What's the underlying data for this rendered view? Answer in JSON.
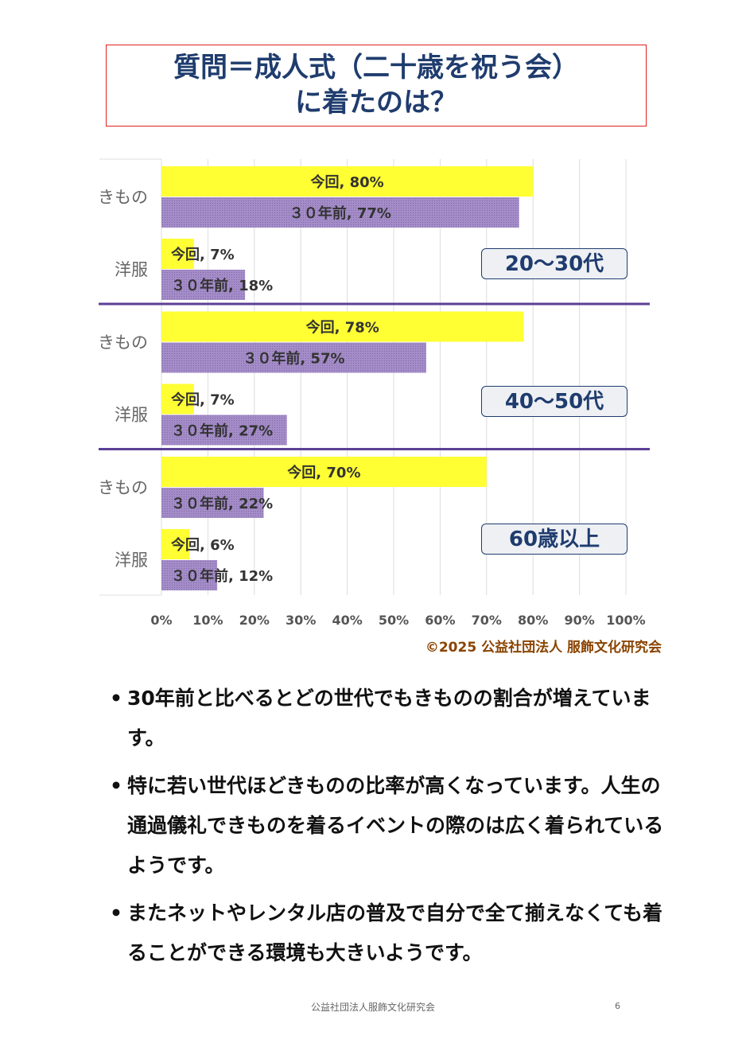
{
  "title": {
    "line1": "質問＝成人式（二十歳を祝う会）",
    "line2": "に着たのは？"
  },
  "chart_data": {
    "type": "bar",
    "orientation": "horizontal",
    "xlim": [
      0,
      100
    ],
    "x_ticks": [
      "0%",
      "10%",
      "20%",
      "30%",
      "40%",
      "50%",
      "60%",
      "70%",
      "80%",
      "90%",
      "100%"
    ],
    "grid": true,
    "colors": {
      "今回": "#ffff33",
      "３０年前": "#a48cc8"
    },
    "groups": [
      {
        "label": "20〜30代",
        "categories": [
          {
            "name": "きもの",
            "bars": [
              {
                "series": "今回",
                "value": 80,
                "label": "今回, 80%"
              },
              {
                "series": "３０年前",
                "value": 77,
                "label": "３０年前, 77%"
              }
            ]
          },
          {
            "name": "洋服",
            "bars": [
              {
                "series": "今回",
                "value": 7,
                "label": "今回, 7%"
              },
              {
                "series": "３０年前",
                "value": 18,
                "label": "３０年前, 18%"
              }
            ]
          }
        ]
      },
      {
        "label": "40〜50代",
        "categories": [
          {
            "name": "きもの",
            "bars": [
              {
                "series": "今回",
                "value": 78,
                "label": "今回, 78%"
              },
              {
                "series": "３０年前",
                "value": 57,
                "label": "３０年前, 57%"
              }
            ]
          },
          {
            "name": "洋服",
            "bars": [
              {
                "series": "今回",
                "value": 7,
                "label": "今回, 7%"
              },
              {
                "series": "３０年前",
                "value": 27,
                "label": "３０年前, 27%"
              }
            ]
          }
        ]
      },
      {
        "label": "60歳以上",
        "categories": [
          {
            "name": "きもの",
            "bars": [
              {
                "series": "今回",
                "value": 70,
                "label": "今回, 70%"
              },
              {
                "series": "３０年前",
                "value": 22,
                "label": "３０年前, 22%"
              }
            ]
          },
          {
            "name": "洋服",
            "bars": [
              {
                "series": "今回",
                "value": 6,
                "label": "今回, 6%"
              },
              {
                "series": "３０年前",
                "value": 12,
                "label": "３０年前, 12%"
              }
            ]
          }
        ]
      }
    ]
  },
  "credit": "©2025 公益社団法人 服飾文化研究会",
  "bullets": [
    "30年前と比べるとどの世代でもきものの割合が増えています。",
    "特に若い世代ほどきものの比率が高くなっています。人生の通過儀礼できものを着るイベントの際のは広く着られているようです。",
    "またネットやレンタル店の普及で自分で全て揃えなくても着ることができる環境も大きいようです。"
  ],
  "footer": {
    "org": "公益社団法人服飾文化研究会",
    "page": "6"
  }
}
